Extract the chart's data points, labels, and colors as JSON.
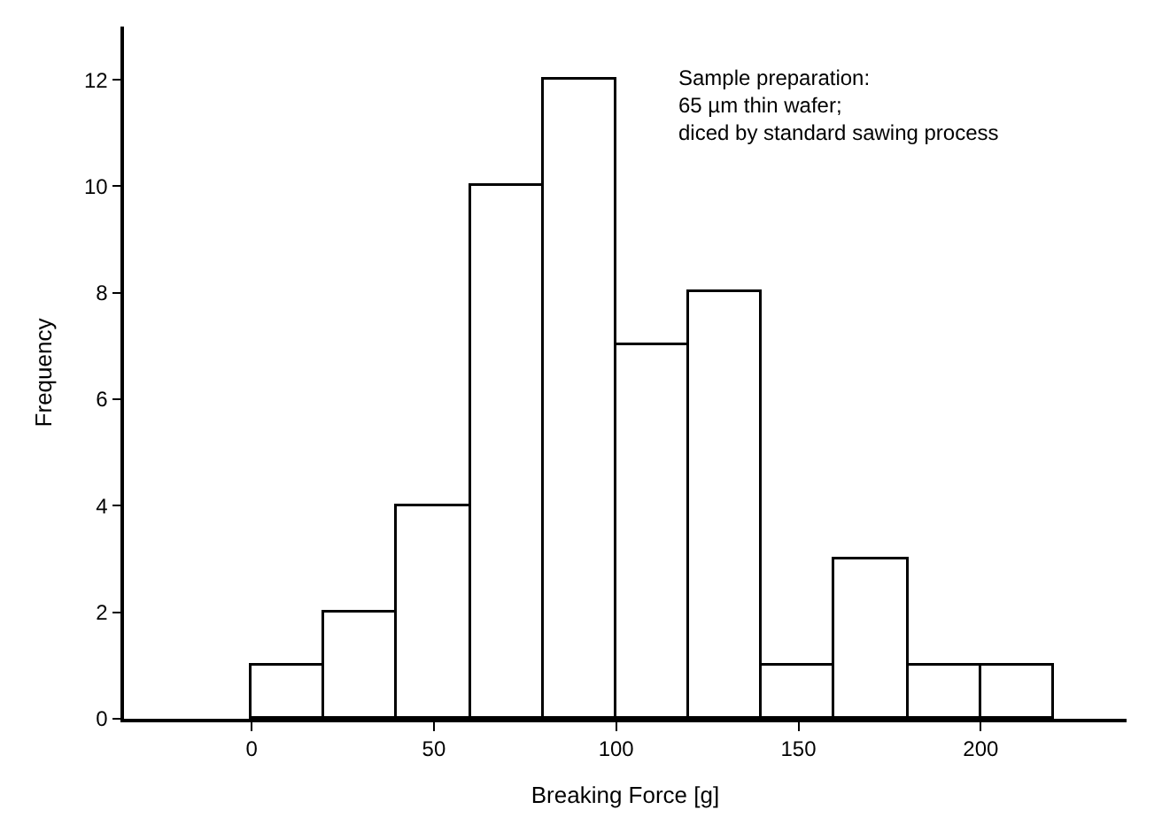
{
  "chart_data": {
    "type": "histogram",
    "xlabel": "Breaking Force [g]",
    "ylabel": "Frequency",
    "bins": [
      0,
      20,
      40,
      60,
      80,
      100,
      120,
      140,
      160,
      180,
      200,
      220
    ],
    "values": [
      1,
      2,
      4,
      10,
      12,
      7,
      8,
      1,
      3,
      1,
      1
    ],
    "color": "#ffffff",
    "xlim": [
      -35,
      240
    ],
    "xticks": [
      0,
      50,
      100,
      150,
      200
    ],
    "ylim": [
      0,
      13
    ],
    "yticks": [
      0,
      2,
      4,
      6,
      8,
      10,
      12
    ],
    "annotations": [
      "Sample preparation:\n65 µm thin wafer;\ndiced by standard sawing process"
    ]
  }
}
